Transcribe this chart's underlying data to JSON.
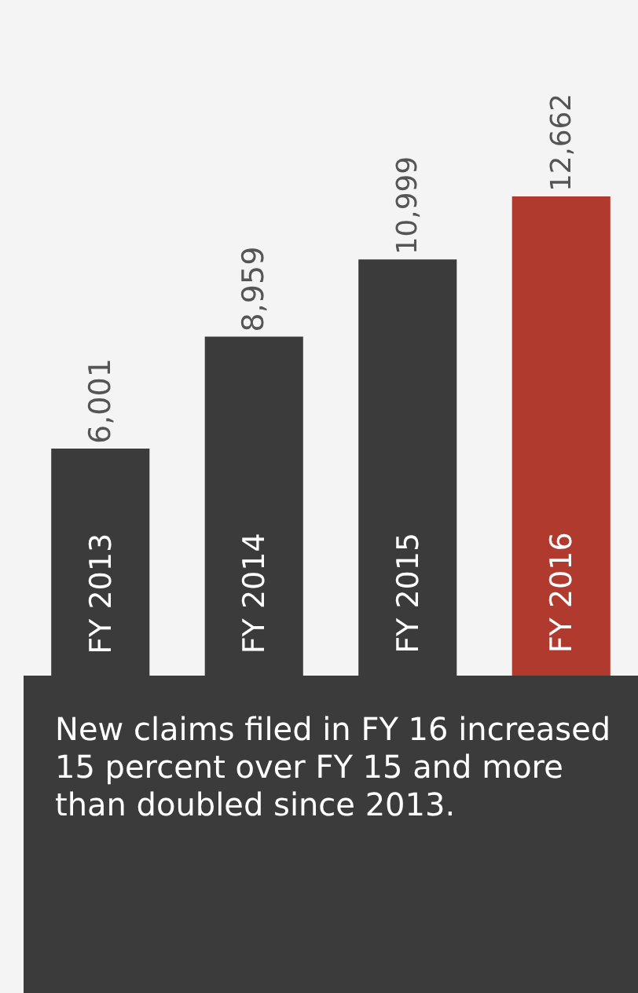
{
  "chart_data": {
    "type": "bar",
    "categories": [
      "FY 2013",
      "FY 2014",
      "FY 2015",
      "FY 2016"
    ],
    "values": [
      6001,
      8959,
      10999,
      12662
    ],
    "colors": [
      "#3b3b3b",
      "#3b3b3b",
      "#3b3b3b",
      "#b03a2e"
    ],
    "data_labels": true,
    "value_labels": [
      "6,001",
      "8,959",
      "10,999",
      "12,662"
    ],
    "grid": false,
    "legend": false,
    "annotations": [
      "New claims filed in FY 16 increased 15 percent over FY 15 and more than doubled since 2013."
    ]
  }
}
